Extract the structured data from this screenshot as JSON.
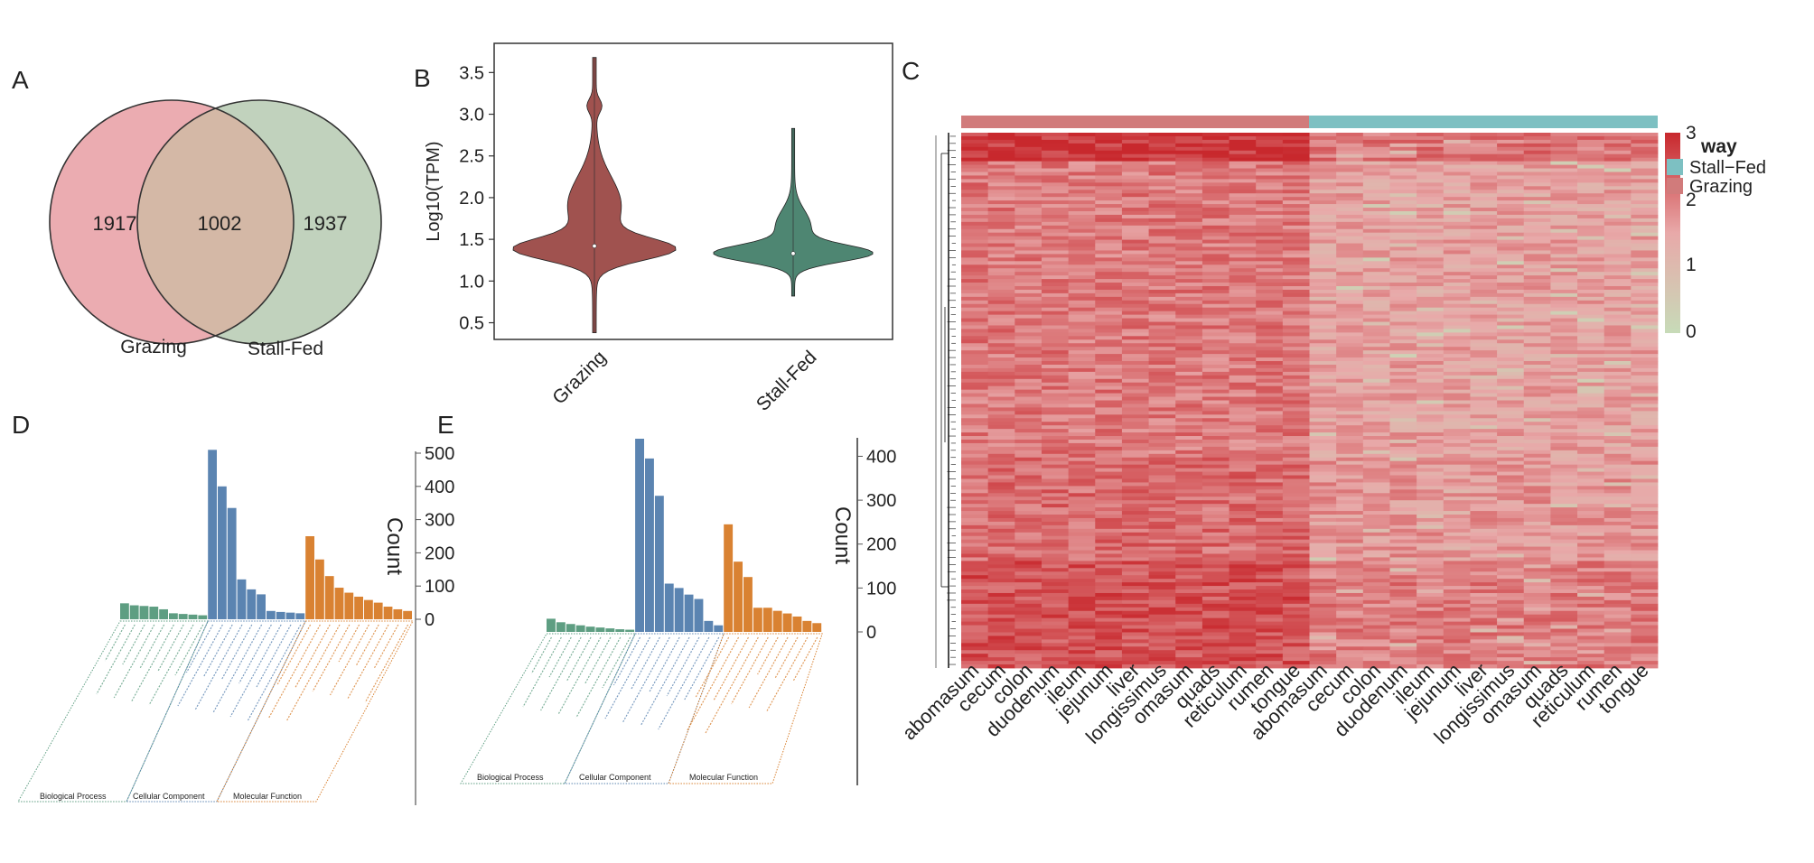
{
  "figure": {
    "panel_labels": [
      "A",
      "B",
      "C",
      "D",
      "E"
    ],
    "colors": {
      "grazing": "#e8a0a6",
      "stall": "#b8ccb4",
      "violin_grazing": "#a0524f",
      "violin_stall": "#4e8672",
      "bp": "#5e9e82",
      "cc": "#5b84b1",
      "mf": "#d98232",
      "heat_high": "#c8282d",
      "heat_mid": "#e8a9a9",
      "heat_low": "#c7dbb8",
      "anno_grazing": "#d17b7b",
      "anno_stall": "#7dc0c2"
    }
  },
  "chart_data": [
    {
      "id": "A",
      "type": "venn",
      "sets": [
        "Grazing",
        "Stall-Fed"
      ],
      "values": {
        "grazing_only": "1917",
        "shared": "1002",
        "stall_only": "1937"
      }
    },
    {
      "id": "B",
      "type": "violin",
      "ylabel": "Log10(TPM)",
      "yticks": [
        "0.5",
        "1.0",
        "1.5",
        "2.0",
        "2.5",
        "3.0",
        "3.5"
      ],
      "ylim": [
        0.3,
        3.85
      ],
      "categories": [
        "Grazing",
        "Stall-Fed"
      ],
      "series": [
        {
          "name": "Grazing",
          "min": 0.38,
          "max": 3.68,
          "median": 1.42,
          "mode": 1.38
        },
        {
          "name": "Stall-Fed",
          "min": 0.82,
          "max": 2.83,
          "median": 1.33,
          "mode": 1.33
        }
      ]
    },
    {
      "id": "C",
      "type": "heatmap",
      "columns": [
        "abomasum",
        "cecum",
        "colon",
        "duodenum",
        "ileum",
        "jejunum",
        "liver",
        "longissimus",
        "omasum",
        "quads",
        "reticulum",
        "rumen",
        "tongue",
        "abomasum",
        "cecum",
        "colon",
        "duodenum",
        "ileum",
        "jejunum",
        "liver",
        "longissimus",
        "omasum",
        "quads",
        "reticulum",
        "rumen",
        "tongue"
      ],
      "groups": [
        "Grazing",
        "Grazing",
        "Grazing",
        "Grazing",
        "Grazing",
        "Grazing",
        "Grazing",
        "Grazing",
        "Grazing",
        "Grazing",
        "Grazing",
        "Grazing",
        "Grazing",
        "Stall-Fed",
        "Stall-Fed",
        "Stall-Fed",
        "Stall-Fed",
        "Stall-Fed",
        "Stall-Fed",
        "Stall-Fed",
        "Stall-Fed",
        "Stall-Fed",
        "Stall-Fed",
        "Stall-Fed",
        "Stall-Fed",
        "Stall-Fed"
      ],
      "color_scale": {
        "ticks": [
          "3",
          "2",
          "1",
          "0"
        ],
        "range": [
          0,
          3
        ]
      },
      "legend": {
        "title": "way",
        "entries": [
          "Stall−Fed",
          "Grazing"
        ]
      }
    },
    {
      "id": "D",
      "type": "bar",
      "ylabel": "Count",
      "yticks": [
        "0",
        "100",
        "200",
        "300",
        "400",
        "500"
      ],
      "ylim": [
        0,
        500
      ],
      "groups": [
        "Biological Process",
        "Cellular Component",
        "Molecular Function"
      ],
      "series": [
        {
          "name": "Biological Process",
          "values": [
            48,
            42,
            40,
            38,
            30,
            18,
            16,
            14,
            12
          ]
        },
        {
          "name": "Cellular Component",
          "values": [
            510,
            400,
            335,
            120,
            90,
            75,
            25,
            22,
            20,
            18
          ]
        },
        {
          "name": "Molecular Function",
          "values": [
            250,
            180,
            130,
            95,
            80,
            68,
            58,
            50,
            38,
            30,
            25
          ]
        }
      ]
    },
    {
      "id": "E",
      "type": "bar",
      "ylabel": "Count",
      "yticks": [
        "0",
        "100",
        "200",
        "300",
        "400"
      ],
      "ylim": [
        0,
        440
      ],
      "groups": [
        "Biological Process",
        "Cellular Component",
        "Molecular Function"
      ],
      "series": [
        {
          "name": "Biological Process",
          "values": [
            30,
            22,
            18,
            15,
            12,
            10,
            8,
            6,
            5
          ]
        },
        {
          "name": "Cellular Component",
          "values": [
            440,
            395,
            310,
            110,
            100,
            85,
            75,
            25,
            15
          ]
        },
        {
          "name": "Molecular Function",
          "values": [
            245,
            160,
            125,
            55,
            55,
            48,
            42,
            35,
            25,
            20
          ]
        }
      ]
    }
  ]
}
